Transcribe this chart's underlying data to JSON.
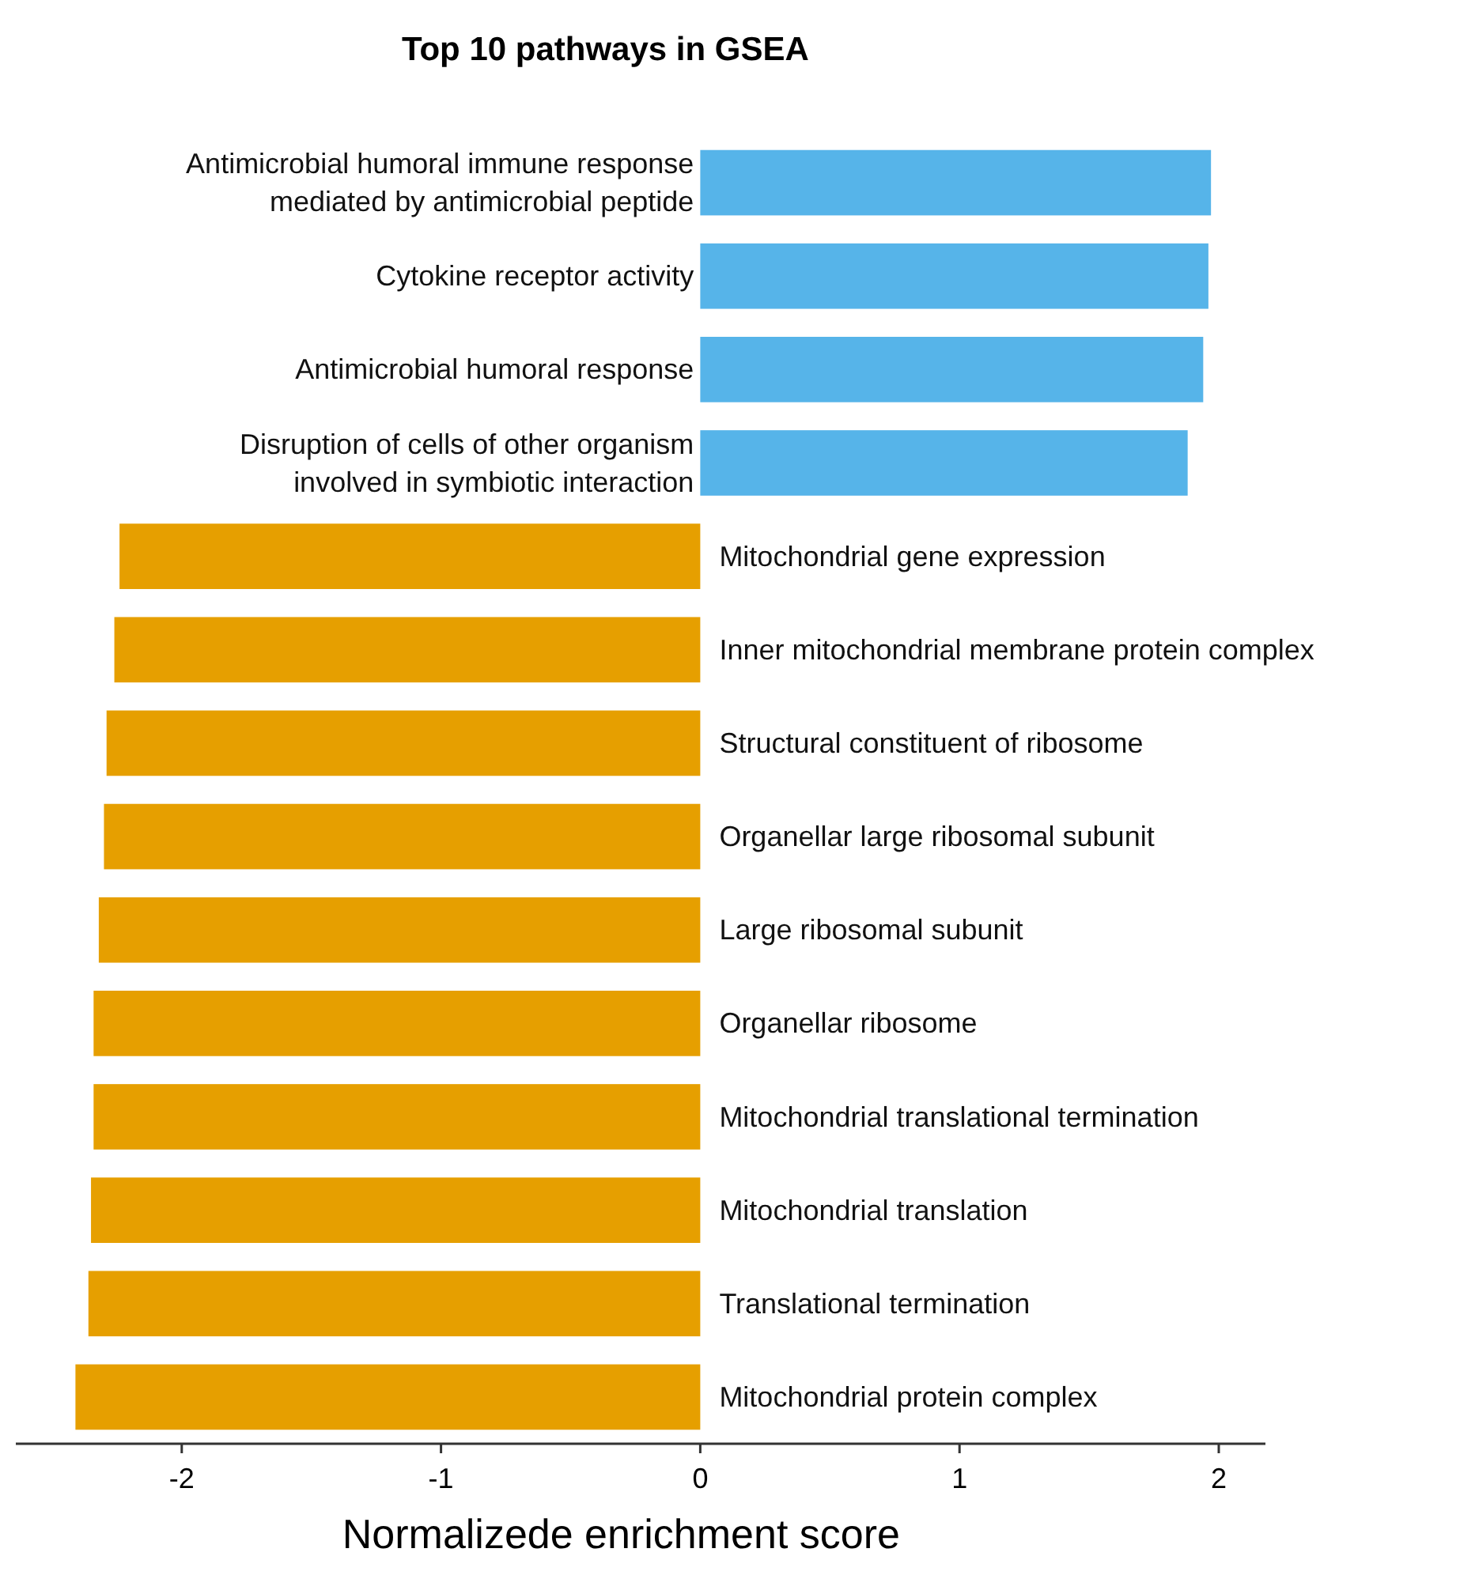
{
  "chart_data": {
    "type": "bar",
    "orientation": "horizontal",
    "title": "Top 10 pathways in GSEA",
    "xlabel": "Normalizede enrichment score",
    "categories": [
      "Antimicrobial humoral immune response mediated by antimicrobial peptide",
      "Cytokine receptor activity",
      "Antimicrobial humoral response",
      "Disruption of cells of other organism involved in symbiotic interaction",
      "Mitochondrial gene expression",
      "Inner mitochondrial membrane protein complex",
      "Structural constituent of ribosome",
      "Organellar large ribosomal subunit",
      "Large ribosomal subunit",
      "Organellar ribosome",
      "Mitochondrial translational termination",
      "Mitochondrial translation",
      "Translational termination",
      "Mitochondrial protein complex"
    ],
    "values": [
      1.97,
      1.96,
      1.94,
      1.88,
      -2.24,
      -2.26,
      -2.29,
      -2.3,
      -2.32,
      -2.34,
      -2.34,
      -2.35,
      -2.36,
      -2.41
    ],
    "colors": [
      "#56b4e9",
      "#56b4e9",
      "#56b4e9",
      "#56b4e9",
      "#e69f00",
      "#e69f00",
      "#e69f00",
      "#e69f00",
      "#e69f00",
      "#e69f00",
      "#e69f00",
      "#e69f00",
      "#e69f00",
      "#e69f00"
    ],
    "xlim": [
      -2.64,
      2.18
    ],
    "xticks": [
      -2,
      -1,
      0,
      1,
      2
    ],
    "tick_labels": "x",
    "grid": false
  }
}
